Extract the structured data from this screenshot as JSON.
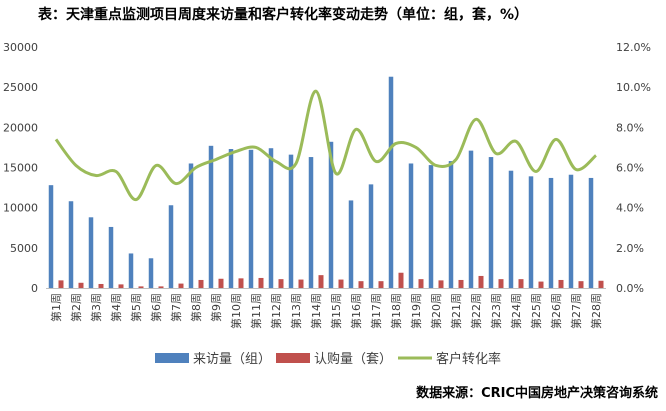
{
  "title": "表：天津重点监测项目周度来访量和客户转化率变动走势（单位：组，套，%）",
  "source": "数据来源：CRIC中国房地产决策咨询系统",
  "colors": {
    "visits": "#4f81bd",
    "purchases": "#c0504d",
    "conversion": "#9bbb59"
  },
  "chart_data": {
    "type": "bar",
    "categories": [
      "第1周",
      "第2周",
      "第3周",
      "第4周",
      "第5周",
      "第6周",
      "第7周",
      "第8周",
      "第9周",
      "第10周",
      "第11周",
      "第12周",
      "第13周",
      "第14周",
      "第15周",
      "第16周",
      "第17周",
      "第18周",
      "第19周",
      "第20周",
      "第21周",
      "第22周",
      "第23周",
      "第24周",
      "第25周",
      "第26周",
      "第27周",
      "第28周"
    ],
    "series": [
      {
        "name": "来访量（组）",
        "type": "bar",
        "axis": "left",
        "values": [
          12800,
          10800,
          8800,
          7600,
          4300,
          3700,
          10300,
          15500,
          17700,
          17300,
          17200,
          17400,
          16600,
          16300,
          18200,
          10900,
          12900,
          26300,
          15500,
          15300,
          15800,
          17100,
          16300,
          14600,
          13900,
          13700,
          14100,
          13700
        ]
      },
      {
        "name": "认购量（套）",
        "type": "bar",
        "axis": "left",
        "values": [
          950,
          650,
          500,
          450,
          200,
          200,
          550,
          1000,
          1150,
          1200,
          1250,
          1100,
          1050,
          1600,
          1050,
          850,
          850,
          1900,
          1100,
          950,
          1000,
          1500,
          1100,
          1100,
          800,
          1000,
          850,
          900
        ]
      },
      {
        "name": "客户转化率",
        "type": "line",
        "axis": "right",
        "values": [
          7.4,
          6.1,
          5.6,
          5.8,
          4.4,
          6.1,
          5.2,
          6.0,
          6.4,
          6.8,
          7.0,
          6.3,
          6.2,
          9.8,
          5.7,
          7.9,
          6.3,
          7.2,
          7.0,
          6.1,
          6.4,
          8.4,
          6.7,
          7.3,
          5.8,
          7.4,
          5.9,
          6.6
        ]
      }
    ],
    "yaxis_left": {
      "ticks": [
        "0",
        "5000",
        "10000",
        "15000",
        "20000",
        "25000",
        "30000"
      ],
      "min": 0,
      "max": 30000
    },
    "yaxis_right": {
      "ticks": [
        "0.0%",
        "2.0%",
        "4.0%",
        "6.0%",
        "8.0%",
        "10.0%",
        "12.0%"
      ],
      "min": 0,
      "max": 12
    },
    "grid": false,
    "legend_position": "bottom"
  }
}
